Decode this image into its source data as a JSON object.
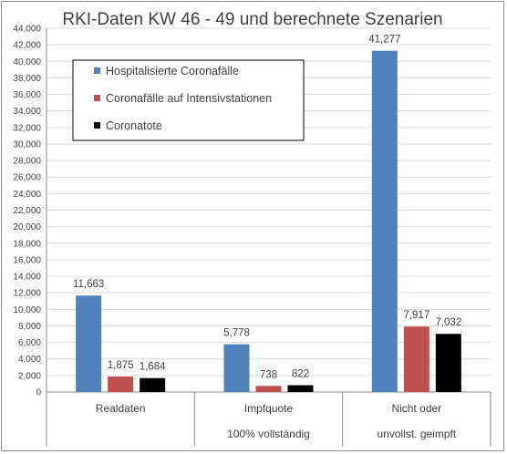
{
  "chart_data": {
    "type": "bar",
    "title": "RKI-Daten KW 46 - 49 und berechnete Szenarien",
    "categories": [
      [
        "Realdaten"
      ],
      [
        "Impfquote",
        "100% vollständig"
      ],
      [
        "Nicht oder",
        "unvollst. geimpft"
      ]
    ],
    "series": [
      {
        "name": "Hospitalisierte Coronafälle",
        "color": "#4f81bd",
        "values": [
          11663,
          5778,
          41277
        ]
      },
      {
        "name": "Coronafälle auf Intensivstationen",
        "color": "#c0504d",
        "values": [
          1875,
          738,
          7917
        ]
      },
      {
        "name": "Coronatote",
        "color": "#000000",
        "values": [
          1684,
          822,
          7032
        ]
      }
    ],
    "ylim": [
      0,
      44000
    ],
    "ytick_step": 2000,
    "grid": true,
    "legend_position": "top-left",
    "data_labels": true
  }
}
